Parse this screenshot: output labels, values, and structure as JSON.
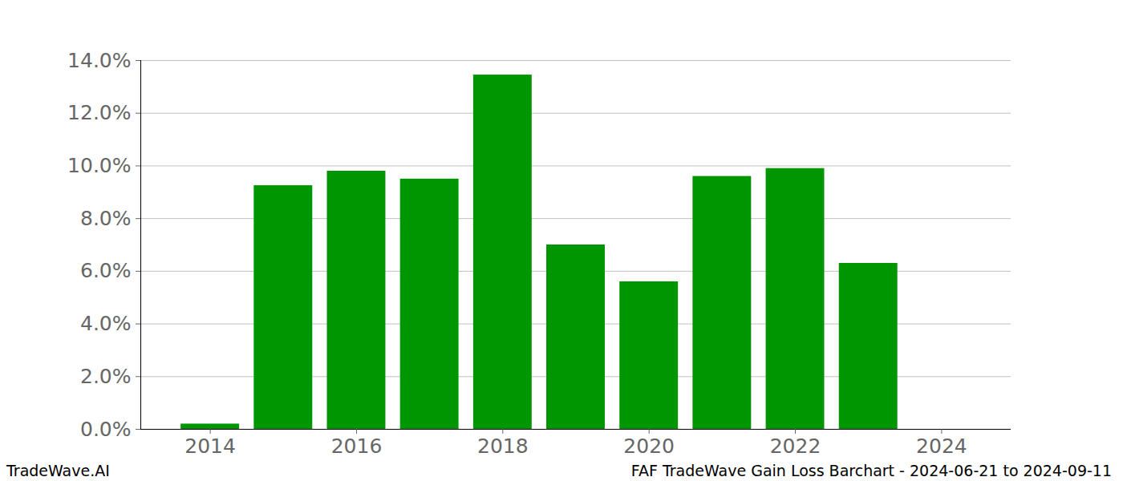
{
  "chart_data": {
    "type": "bar",
    "x": [
      2014,
      2015,
      2016,
      2017,
      2018,
      2019,
      2020,
      2021,
      2022,
      2023
    ],
    "values": [
      0.2,
      9.25,
      9.8,
      9.5,
      13.45,
      7.0,
      5.6,
      9.6,
      9.9,
      6.3
    ],
    "color": "#009600",
    "xlim": [
      2013.05,
      2024.95
    ],
    "xticks": [
      2014,
      2016,
      2018,
      2020,
      2022,
      2024
    ],
    "ylim": [
      0,
      14
    ],
    "yticks": [
      {
        "value": 0,
        "label": "0.0%"
      },
      {
        "value": 2,
        "label": "2.0%"
      },
      {
        "value": 4,
        "label": "4.0%"
      },
      {
        "value": 6,
        "label": "6.0%"
      },
      {
        "value": 8,
        "label": "8.0%"
      },
      {
        "value": 10,
        "label": "10.0%"
      },
      {
        "value": 12,
        "label": "12.0%"
      },
      {
        "value": 14,
        "label": "14.0%"
      }
    ],
    "grid": true,
    "caption_left": "TradeWave.AI",
    "caption_right": "FAF TradeWave Gain Loss Barchart - 2024-06-21 to 2024-09-11"
  }
}
